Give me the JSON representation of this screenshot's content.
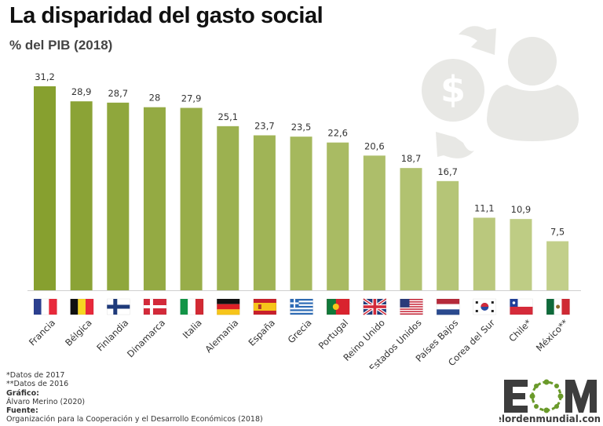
{
  "chart_data": {
    "type": "bar",
    "title": "La disparidad del gasto social",
    "subtitle": "% del PIB (2018)",
    "categories": [
      "Francia",
      "Bélgica",
      "Finlandia",
      "Dinamarca",
      "Italia",
      "Alemania",
      "España",
      "Grecia",
      "Portugal",
      "Reino Unido",
      "Estados Unidos",
      "Países Bajos",
      "Corea del Sur",
      "Chile*",
      "México**"
    ],
    "values": [
      31.2,
      28.9,
      28.7,
      28,
      27.9,
      25.1,
      23.7,
      23.5,
      22.6,
      20.6,
      18.7,
      16.7,
      11.1,
      10.9,
      7.5
    ],
    "value_labels": [
      "31,2",
      "28,9",
      "28,7",
      "28",
      "27,9",
      "25,1",
      "23,7",
      "23,5",
      "22,6",
      "20,6",
      "18,7",
      "16,7",
      "11,1",
      "10,9",
      "7,5"
    ],
    "flags": [
      "fr",
      "be",
      "fi",
      "dk",
      "it",
      "de",
      "es",
      "gr",
      "pt",
      "gb",
      "us",
      "nl",
      "kr",
      "cl",
      "mx"
    ],
    "ylim": [
      0,
      32
    ],
    "grid": false,
    "bar_color_start": "#87a02f",
    "bar_color_end": "#c2cf8a",
    "icon": "money-exchange-person-icon"
  },
  "notes": {
    "note1": "*Datos de 2017",
    "note2": "**Datos de 2016",
    "grafico_label": "Gráfico:",
    "grafico": "Álvaro Merino (2020)",
    "fuente_label": "Fuente:",
    "fuente": "Organización para la Cooperación y el Desarrollo Económicos (2018)"
  },
  "logo": {
    "letters": "EOM",
    "site": "elordenmundial.com",
    "green": "#6a9a2a",
    "dark": "#3d3d3d"
  }
}
